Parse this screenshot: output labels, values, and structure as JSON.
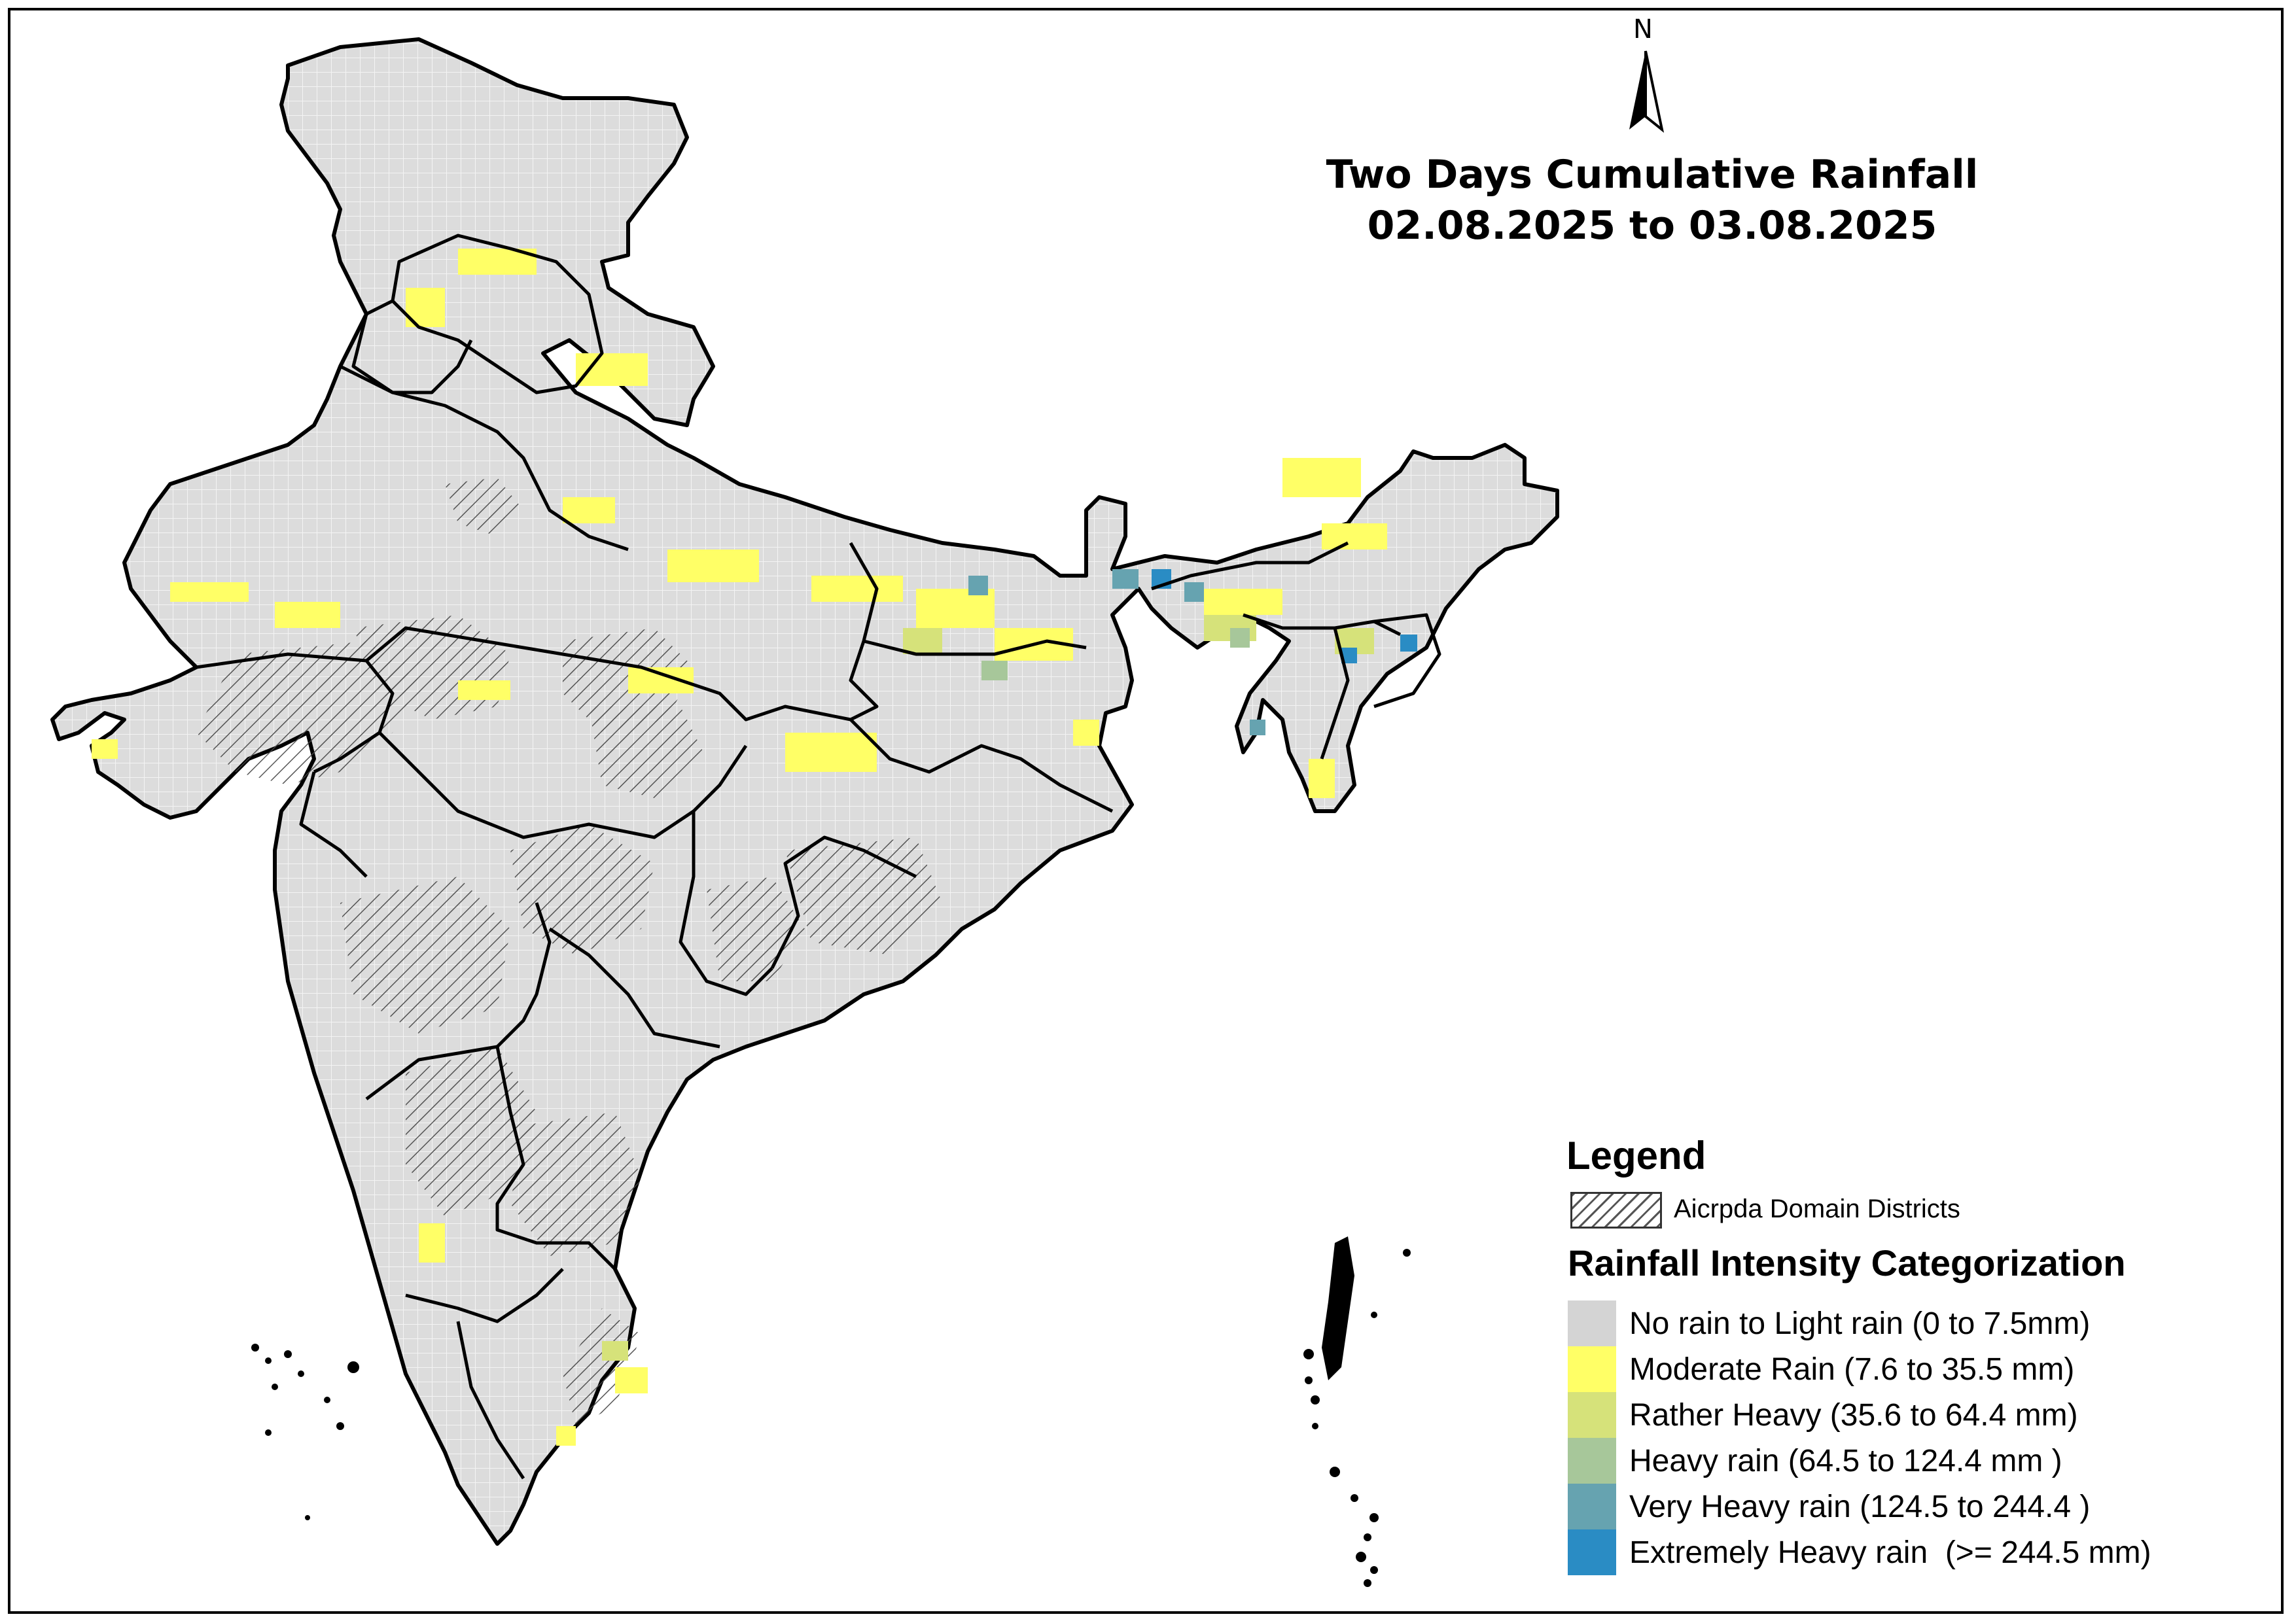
{
  "title": {
    "line1": "Two Days Cumulative Rainfall",
    "line2": "02.08.2025 to 03.08.2025"
  },
  "north_arrow": {
    "label": "N",
    "icon": "north-arrow-icon"
  },
  "legend": {
    "heading": "Legend",
    "domain_label": "Aicrpda Domain Districts",
    "category_heading": "Rainfall Intensity Categorization",
    "categories": [
      {
        "label": "No rain to Light rain (0 to 7.5mm)",
        "color": "#d4d4d4"
      },
      {
        "label": "Moderate Rain (7.6 to 35.5 mm)",
        "color": "#ffff66"
      },
      {
        "label": "Rather Heavy (35.6 to 64.4 mm)",
        "color": "#d6e27a"
      },
      {
        "label": "Heavy rain (64.5 to 124.4 mm )",
        "color": "#a7c79a"
      },
      {
        "label": "Very Heavy rain (124.5 to 244.4 )",
        "color": "#66a3b0"
      },
      {
        "label": "Extremely Heavy rain  (>= 244.5 mm)",
        "color": "#2a8cc4"
      }
    ]
  },
  "colors": {
    "background": "#ffffff",
    "land": "#dcdcdc",
    "boundary": "#000000",
    "district_lines": "#888888"
  }
}
